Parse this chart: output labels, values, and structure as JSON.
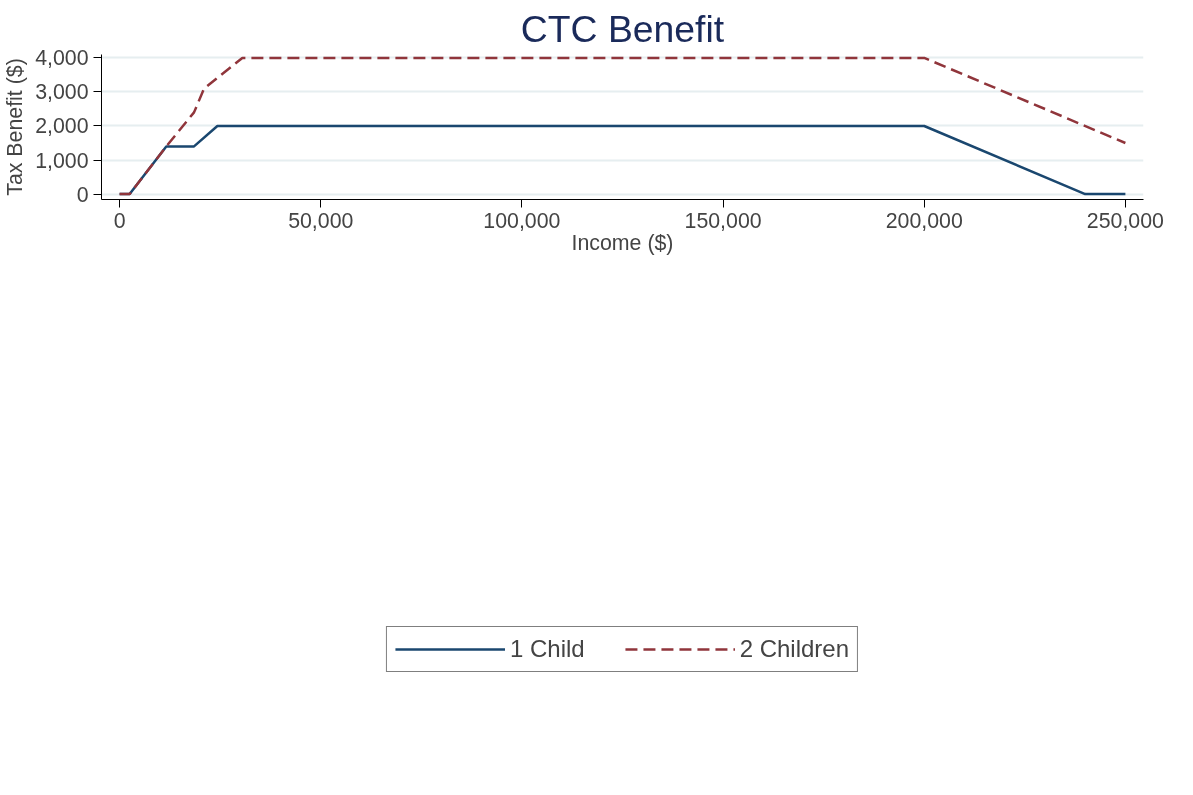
{
  "chart_data": {
    "type": "line",
    "title": "CTC Benefit",
    "xlabel": "Income ($)",
    "ylabel": "Tax Benefit ($)",
    "xlim": [
      -4500,
      254500
    ],
    "xticks": [
      {
        "value": 0,
        "label": "0"
      },
      {
        "value": 50000,
        "label": "50,000"
      },
      {
        "value": 100000,
        "label": "100,000"
      },
      {
        "value": 150000,
        "label": "150,000"
      },
      {
        "value": 200000,
        "label": "200,000"
      },
      {
        "value": 250000,
        "label": "250,000"
      }
    ],
    "ylim": [
      -160,
      4100
    ],
    "yticks": [
      {
        "value": 0,
        "label": "0"
      },
      {
        "value": 1000,
        "label": "1,000"
      },
      {
        "value": 2000,
        "label": "2,000"
      },
      {
        "value": 3000,
        "label": "3,000"
      },
      {
        "value": 4000,
        "label": "4,000"
      }
    ],
    "grid": "y",
    "legend": "bottom",
    "series": [
      {
        "name": "1 Child",
        "color": "#1a476f",
        "line_style": "solid",
        "x": [
          0,
          2500,
          11600,
          18500,
          24300,
          200000,
          240000,
          250000
        ],
        "values": [
          0,
          0,
          1400,
          1400,
          2000,
          2000,
          0,
          0
        ]
      },
      {
        "name": "2 Children",
        "color": "#90353b",
        "line_style": "dashed",
        "x": [
          0,
          2500,
          11600,
          18500,
          21000,
          30500,
          200000,
          250000
        ],
        "values": [
          0,
          0,
          1400,
          2400,
          3100,
          4000,
          4000,
          1500
        ]
      }
    ]
  }
}
